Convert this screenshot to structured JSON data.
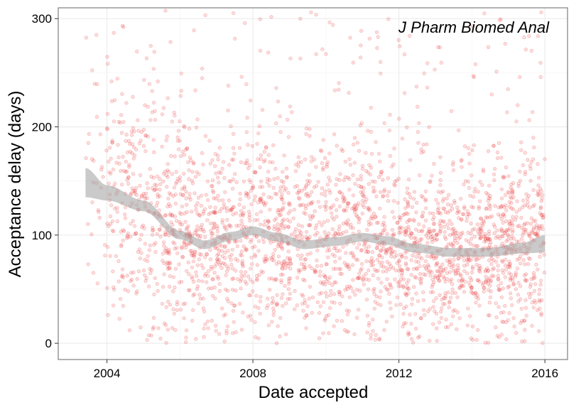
{
  "chart_data": {
    "type": "scatter",
    "title": "",
    "annotation": "J Pharm Biomed Anal",
    "xlabel": "Date accepted",
    "ylabel": "Acceptance delay (days)",
    "x_ticks": [
      "2004",
      "2008",
      "2012",
      "2016"
    ],
    "y_ticks": [
      "0",
      "100",
      "200",
      "300"
    ],
    "xlim": [
      "2002-09-01",
      "2016-08-15"
    ],
    "ylim": [
      -15,
      310
    ],
    "grid": true,
    "legend": "none",
    "point_color": "#e8272a",
    "point_opacity": 0.15,
    "smooth_color": "#a6a6a6",
    "points_description": "approximately 3000 semi-transparent points spread from mid-2003 to early 2016, mostly between 0 and 200 days with a sparse tail up to 300 days",
    "points_density": [
      {
        "year": 2003.5,
        "count": 30
      },
      {
        "year": 2004.5,
        "count": 170
      },
      {
        "year": 2005.5,
        "count": 220
      },
      {
        "year": 2006.5,
        "count": 240
      },
      {
        "year": 2007.5,
        "count": 230
      },
      {
        "year": 2008.5,
        "count": 240
      },
      {
        "year": 2009.5,
        "count": 200
      },
      {
        "year": 2010.5,
        "count": 220
      },
      {
        "year": 2011.5,
        "count": 230
      },
      {
        "year": 2012.5,
        "count": 250
      },
      {
        "year": 2013.5,
        "count": 260
      },
      {
        "year": 2014.5,
        "count": 270
      },
      {
        "year": 2015.5,
        "count": 260
      }
    ],
    "smooth": [
      {
        "x": "2003-06-01",
        "y": 148,
        "lo": 135,
        "hi": 162
      },
      {
        "x": "2004-01-01",
        "y": 139,
        "lo": 132,
        "hi": 146
      },
      {
        "x": "2005-01-01",
        "y": 127,
        "lo": 122,
        "hi": 132
      },
      {
        "x": "2006-01-01",
        "y": 100,
        "lo": 96,
        "hi": 104
      },
      {
        "x": "2006-09-01",
        "y": 91,
        "lo": 87,
        "hi": 95
      },
      {
        "x": "2007-06-01",
        "y": 99,
        "lo": 95,
        "hi": 103
      },
      {
        "x": "2008-01-01",
        "y": 104,
        "lo": 100,
        "hi": 108
      },
      {
        "x": "2008-09-01",
        "y": 98,
        "lo": 94,
        "hi": 102
      },
      {
        "x": "2009-06-01",
        "y": 91,
        "lo": 87,
        "hi": 95
      },
      {
        "x": "2010-04-01",
        "y": 94,
        "lo": 90,
        "hi": 98
      },
      {
        "x": "2011-01-01",
        "y": 98,
        "lo": 94,
        "hi": 102
      },
      {
        "x": "2011-09-01",
        "y": 95,
        "lo": 91,
        "hi": 99
      },
      {
        "x": "2012-06-01",
        "y": 88,
        "lo": 84,
        "hi": 92
      },
      {
        "x": "2013-06-01",
        "y": 84,
        "lo": 80,
        "hi": 88
      },
      {
        "x": "2014-06-01",
        "y": 84,
        "lo": 80,
        "hi": 88
      },
      {
        "x": "2015-06-01",
        "y": 88,
        "lo": 83,
        "hi": 93
      },
      {
        "x": "2016-01-01",
        "y": 92,
        "lo": 84,
        "hi": 100
      }
    ]
  }
}
